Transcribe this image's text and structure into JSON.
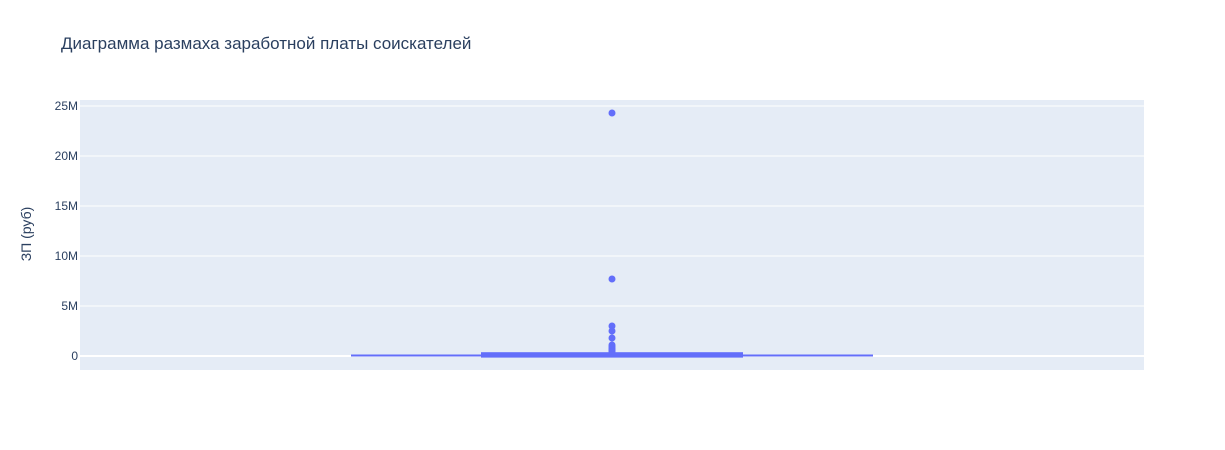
{
  "chart_data": {
    "type": "box",
    "title": "Диаграмма размаха заработной платы соискателей",
    "xlabel": "",
    "ylabel": "ЗП (руб)",
    "ylim": [
      -1400000,
      25500000
    ],
    "y_ticks": [
      {
        "value": 0,
        "label": "0"
      },
      {
        "value": 5000000,
        "label": "5M"
      },
      {
        "value": 10000000,
        "label": "10M"
      },
      {
        "value": 15000000,
        "label": "15M"
      },
      {
        "value": 20000000,
        "label": "20M"
      },
      {
        "value": 25000000,
        "label": "25M"
      }
    ],
    "grid": true,
    "legend": "none",
    "series": [
      {
        "color": "#636efa",
        "box": {
          "min": 0,
          "q1": 40000,
          "median": 100000,
          "q3": 180000,
          "max": 390000
        },
        "outliers": [
          24300000,
          7700000,
          3000000,
          2500000,
          1800000,
          1100000,
          950000,
          800000,
          700000,
          600000,
          500000,
          450000
        ]
      }
    ]
  }
}
